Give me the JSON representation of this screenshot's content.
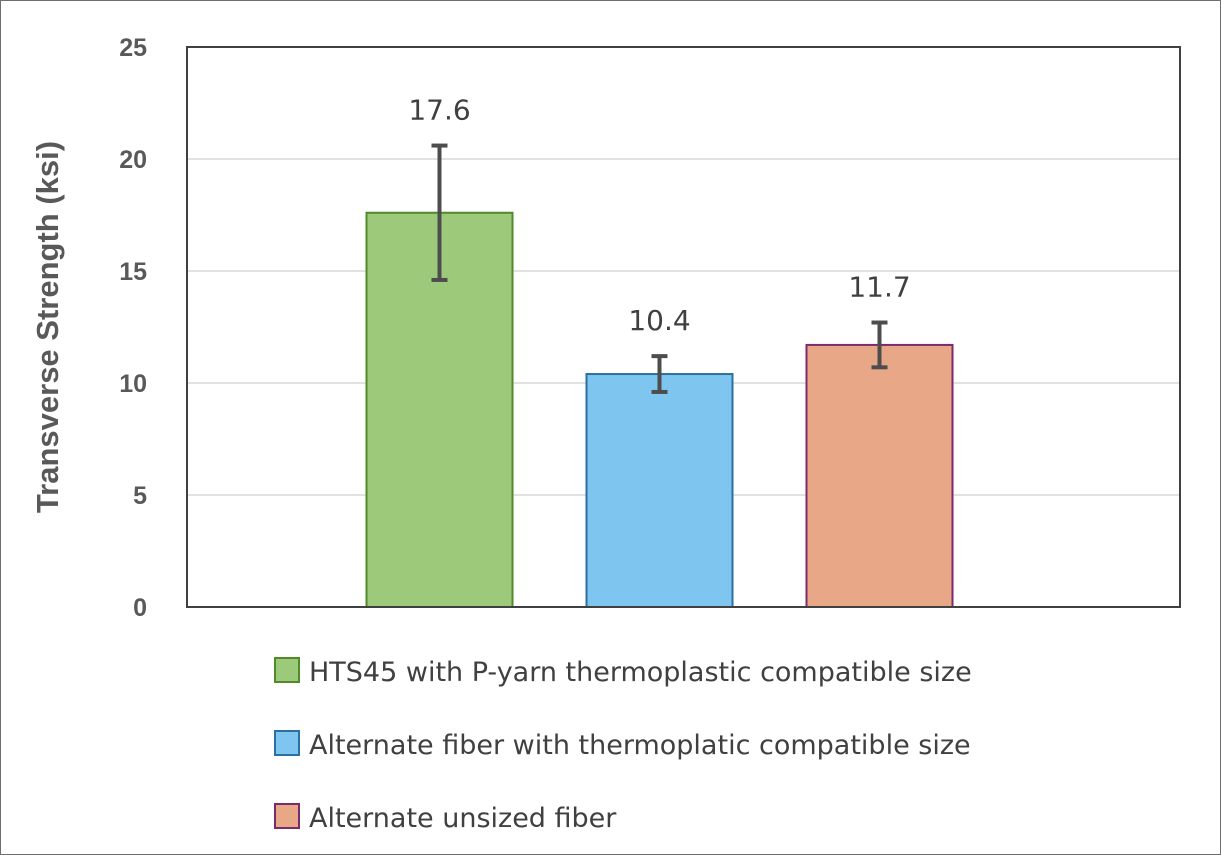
{
  "chart_data": {
    "type": "bar",
    "title": "",
    "xlabel": "",
    "ylabel": "Transverse Strength (ksi)",
    "ylim": [
      0,
      25
    ],
    "yticks": [
      0,
      5,
      10,
      15,
      20,
      25
    ],
    "grid": true,
    "legend_position": "bottom",
    "series": [
      {
        "name": "HTS45 with P-yarn thermoplastic compatible size",
        "value": 17.6,
        "error": 3.0,
        "label": "17.6",
        "fill": "#9dc97a",
        "stroke": "#4f8a2b"
      },
      {
        "name": "Alternate fiber with thermoplatic compatible size",
        "value": 10.4,
        "error": 0.8,
        "label": "10.4",
        "fill": "#7ec5ef",
        "stroke": "#2b6fa3"
      },
      {
        "name": "Alternate unsized fiber",
        "value": 11.7,
        "error": 1.0,
        "label": "11.7",
        "fill": "#e8a888",
        "stroke": "#7b2a6b"
      }
    ]
  }
}
